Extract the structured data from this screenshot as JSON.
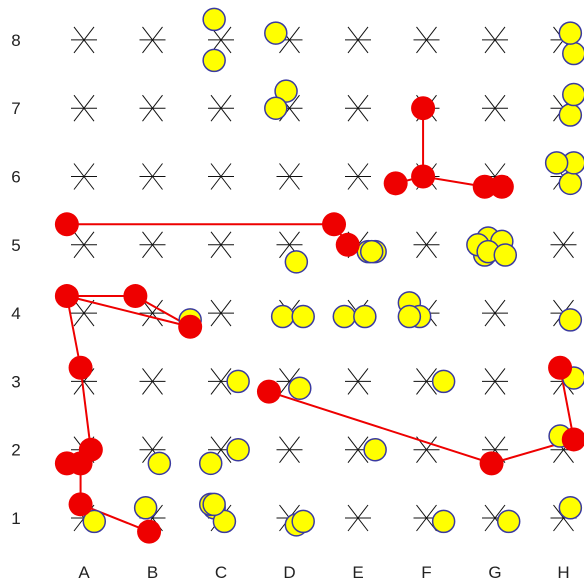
{
  "board": {
    "columns": [
      "A",
      "B",
      "C",
      "D",
      "E",
      "F",
      "G",
      "H"
    ],
    "rows": [
      "1",
      "2",
      "3",
      "4",
      "5",
      "6",
      "7",
      "8"
    ],
    "colors": {
      "grid_star": "#111111",
      "yellow_fill": "#ffff00",
      "yellow_stroke": "#3a3aa0",
      "red": "#ee0000",
      "background": "#ffffff"
    }
  },
  "yellow_pieces": [
    {
      "c": 2.9,
      "r": 8.3
    },
    {
      "c": 2.9,
      "r": 7.7
    },
    {
      "c": 3.8,
      "r": 8.1
    },
    {
      "c": 3.95,
      "r": 7.25
    },
    {
      "c": 3.8,
      "r": 7.0
    },
    {
      "c": 6.9,
      "r": 5.1
    },
    {
      "c": 6.85,
      "r": 4.85
    },
    {
      "c": 5.25,
      "r": 4.9
    },
    {
      "c": 5.15,
      "r": 4.9
    },
    {
      "c": 5.2,
      "r": 4.9
    },
    {
      "c": 4.1,
      "r": 4.75
    },
    {
      "c": 4.8,
      "r": 3.95
    },
    {
      "c": 5.1,
      "r": 3.95
    },
    {
      "c": 3.9,
      "r": 3.95
    },
    {
      "c": 4.2,
      "r": 3.95
    },
    {
      "c": 5.75,
      "r": 4.15
    },
    {
      "c": 5.9,
      "r": 3.95
    },
    {
      "c": 5.75,
      "r": 3.95
    },
    {
      "c": 6.75,
      "r": 5.0
    },
    {
      "c": 7.1,
      "r": 5.05
    },
    {
      "c": 6.9,
      "r": 4.9
    },
    {
      "c": 7.15,
      "r": 4.85
    },
    {
      "c": 2.55,
      "r": 3.9
    },
    {
      "c": 3.25,
      "r": 3.0
    },
    {
      "c": 4.15,
      "r": 2.9
    },
    {
      "c": 6.25,
      "r": 3.0
    },
    {
      "c": 3.25,
      "r": 2.0
    },
    {
      "c": 5.25,
      "r": 2.0
    },
    {
      "c": 7.95,
      "r": 2.2
    },
    {
      "c": 2.85,
      "r": 1.8
    },
    {
      "c": 2.1,
      "r": 1.8
    },
    {
      "c": 2.9,
      "r": 1.15
    },
    {
      "c": 3.05,
      "r": 0.95
    },
    {
      "c": 2.85,
      "r": 1.2
    },
    {
      "c": 4.1,
      "r": 0.9
    },
    {
      "c": 4.2,
      "r": 0.95
    },
    {
      "c": 6.25,
      "r": 0.95
    },
    {
      "c": 7.2,
      "r": 0.95
    },
    {
      "c": 1.15,
      "r": 0.95
    },
    {
      "c": 1.9,
      "r": 1.15
    },
    {
      "c": 2.9,
      "r": 1.2
    },
    {
      "c": 8.1,
      "r": 1.15
    },
    {
      "c": 8.15,
      "r": 3.05
    },
    {
      "c": 8.1,
      "r": 3.9
    },
    {
      "c": 8.1,
      "r": 5.9
    },
    {
      "c": 8.15,
      "r": 6.2
    },
    {
      "c": 7.9,
      "r": 6.2
    },
    {
      "c": 8.1,
      "r": 6.9
    },
    {
      "c": 8.15,
      "r": 7.2
    },
    {
      "c": 8.15,
      "r": 7.8
    },
    {
      "c": 8.1,
      "r": 8.1
    }
  ],
  "red_paths": [
    [
      [
        0.75,
        5.3
      ],
      [
        4.65,
        5.3
      ],
      [
        4.85,
        5.0
      ]
    ],
    [
      [
        5.55,
        5.9
      ],
      [
        5.95,
        6.0
      ],
      [
        6.85,
        5.85
      ],
      [
        7.1,
        5.85
      ]
    ],
    [
      [
        5.95,
        6.0
      ],
      [
        5.95,
        7.0
      ]
    ],
    [
      [
        0.75,
        4.25
      ],
      [
        1.75,
        4.25
      ],
      [
        2.55,
        3.8
      ],
      [
        0.75,
        4.25
      ],
      [
        0.95,
        3.2
      ],
      [
        1.1,
        2.0
      ],
      [
        0.95,
        1.8
      ],
      [
        0.75,
        1.8
      ],
      [
        0.95,
        1.8
      ],
      [
        0.95,
        1.2
      ],
      [
        1.95,
        0.8
      ]
    ],
    [
      [
        3.7,
        2.85
      ],
      [
        6.95,
        1.8
      ],
      [
        8.15,
        2.15
      ],
      [
        7.95,
        3.2
      ]
    ]
  ]
}
